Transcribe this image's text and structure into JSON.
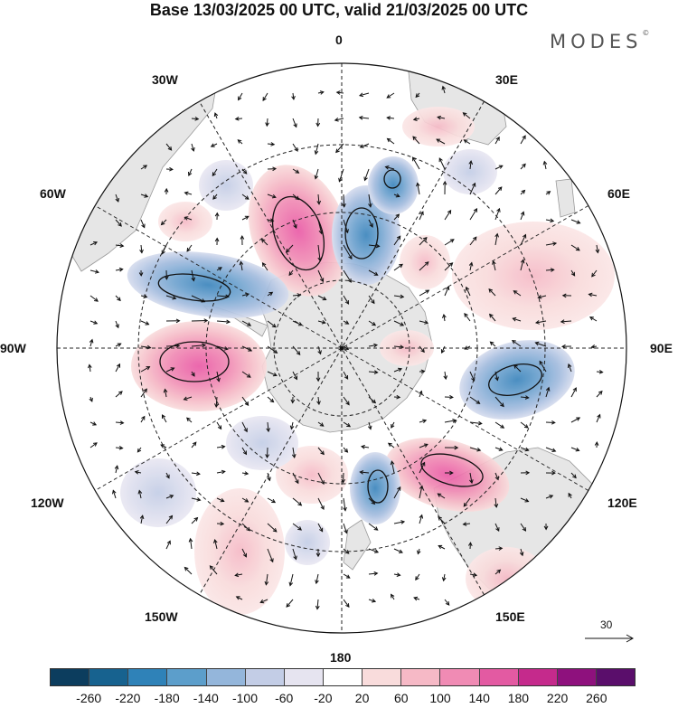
{
  "header": {
    "title": "Base 13/03/2025 00 UTC, valid 21/03/2025 00 UTC",
    "brand": "MODES",
    "brand_mark": "©"
  },
  "map": {
    "projection": "polar stereographic (south pole)",
    "longitude_labels": [
      "0",
      "30E",
      "60E",
      "90E",
      "120E",
      "150E",
      "180",
      "150W",
      "120W",
      "90W",
      "60W",
      "30W"
    ],
    "colors": {
      "land": "#e6e6e6",
      "coast": "#9a9a9a",
      "grid": "#222222",
      "vector": "#111111",
      "contour": "#111111"
    }
  },
  "vector_scale": {
    "label": "30"
  },
  "colorbar": {
    "bounds": [
      -260,
      -220,
      -180,
      -140,
      -100,
      -60,
      -20,
      20,
      60,
      100,
      140,
      180,
      220,
      260
    ],
    "tick_labels": [
      "-260",
      "-220",
      "-180",
      "-140",
      "-100",
      "-60",
      "-20",
      "20",
      "60",
      "100",
      "140",
      "180",
      "220",
      "260"
    ],
    "colors": [
      "#0c3d5e",
      "#17628f",
      "#2f82b8",
      "#5c9ecb",
      "#94b6db",
      "#c3cde6",
      "#e6e4f0",
      "#ffffff",
      "#f9dcdc",
      "#f6b9c6",
      "#f08bb4",
      "#e35aa2",
      "#c52a8c",
      "#8e117d",
      "#5a0e6b"
    ]
  }
}
